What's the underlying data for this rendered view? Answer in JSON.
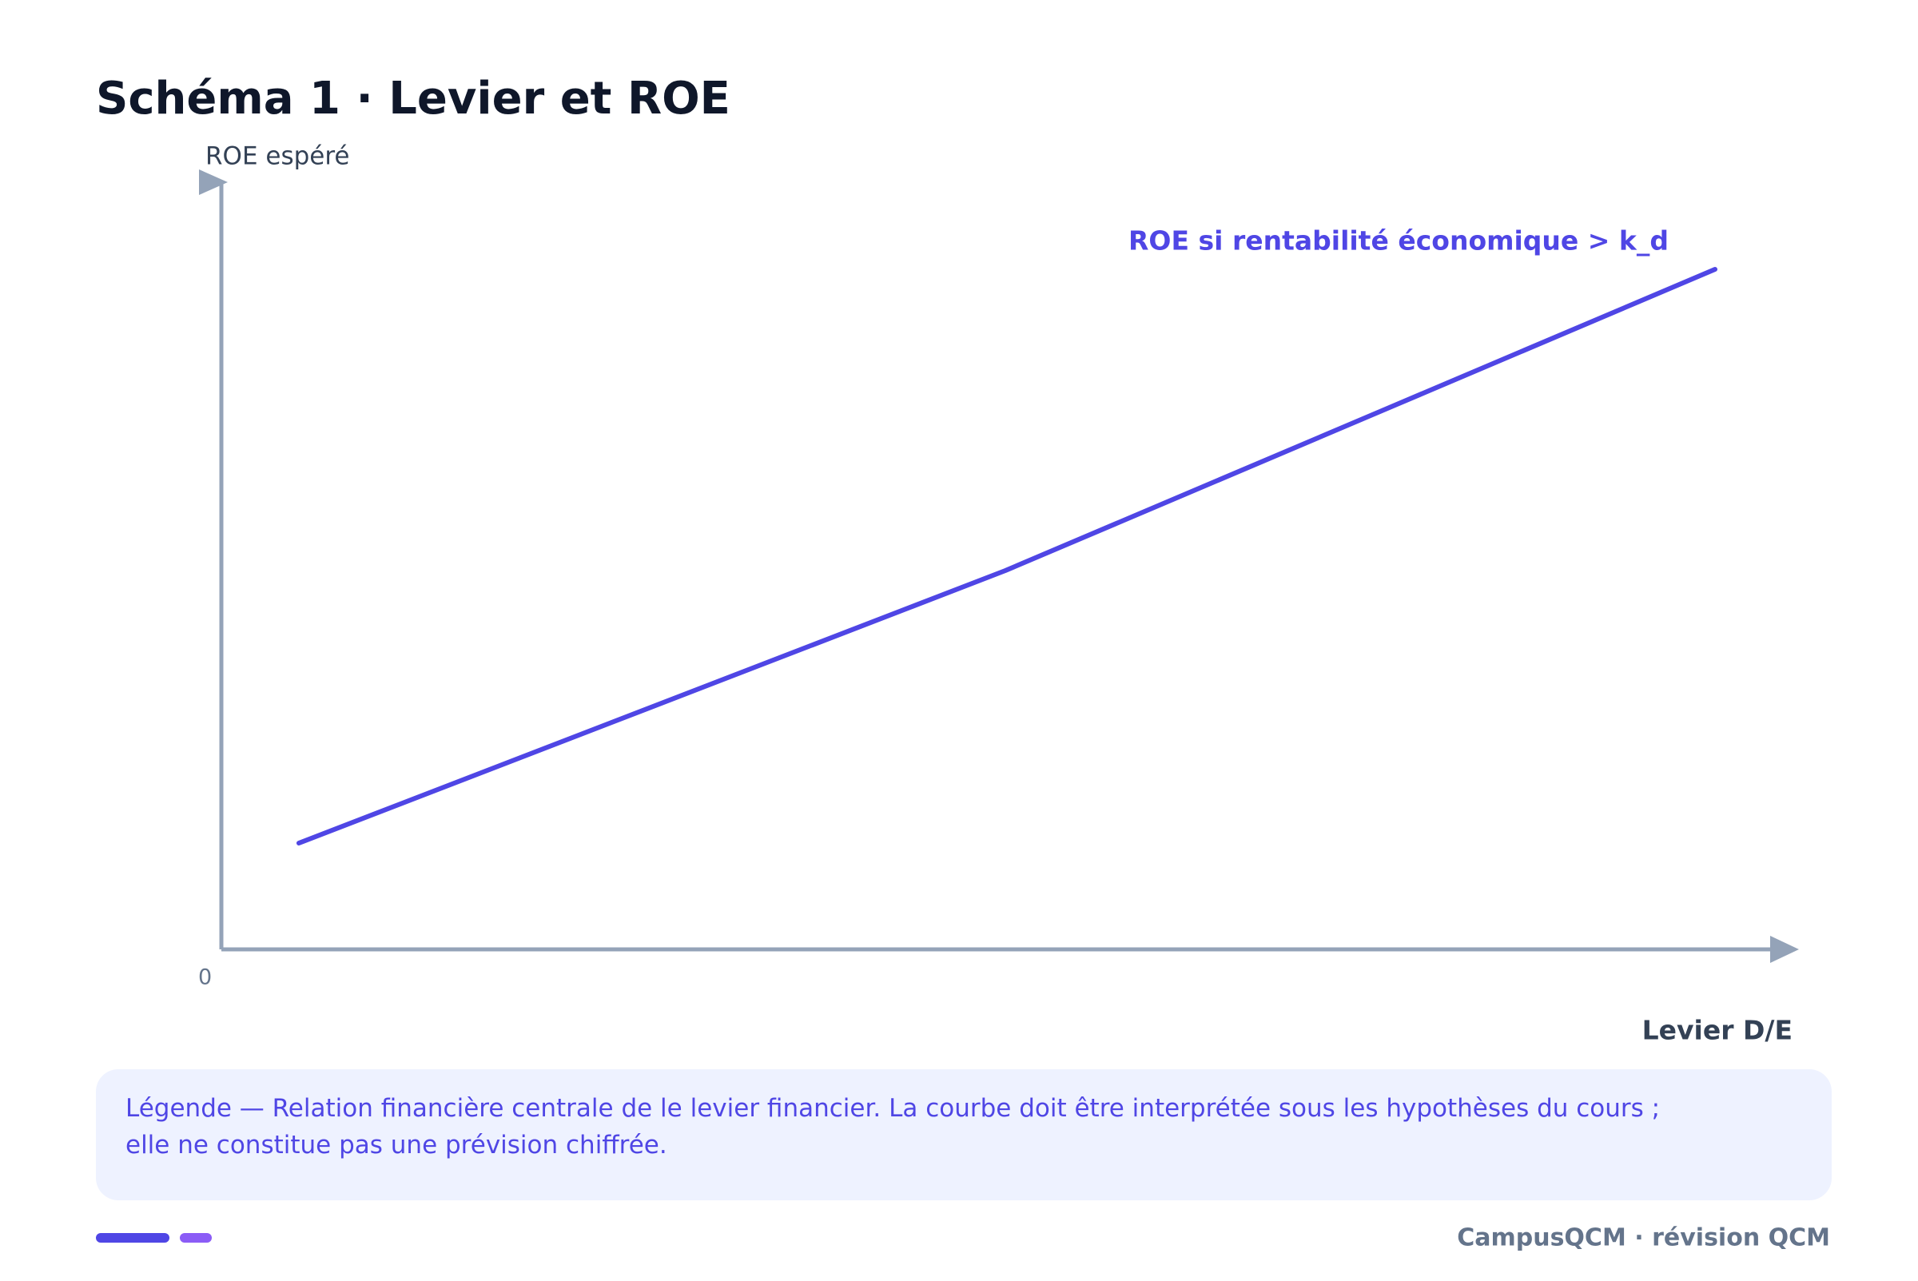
{
  "header": {
    "title": "Schéma 1 · Levier et ROE"
  },
  "diagram": {
    "y_axis_label": "ROE espéré",
    "x_axis_label": "Levier D/E",
    "origin_label": "0",
    "curve_label": "ROE si rentabilité économique > k_d"
  },
  "legend": {
    "text": "Légende — Relation financière centrale de le levier financier. La courbe doit être interprétée sous les hypothèses du cours ; elle ne constitue pas une prévision chiffrée."
  },
  "footer": {
    "brand": "CampusQCM · révision QCM"
  }
}
